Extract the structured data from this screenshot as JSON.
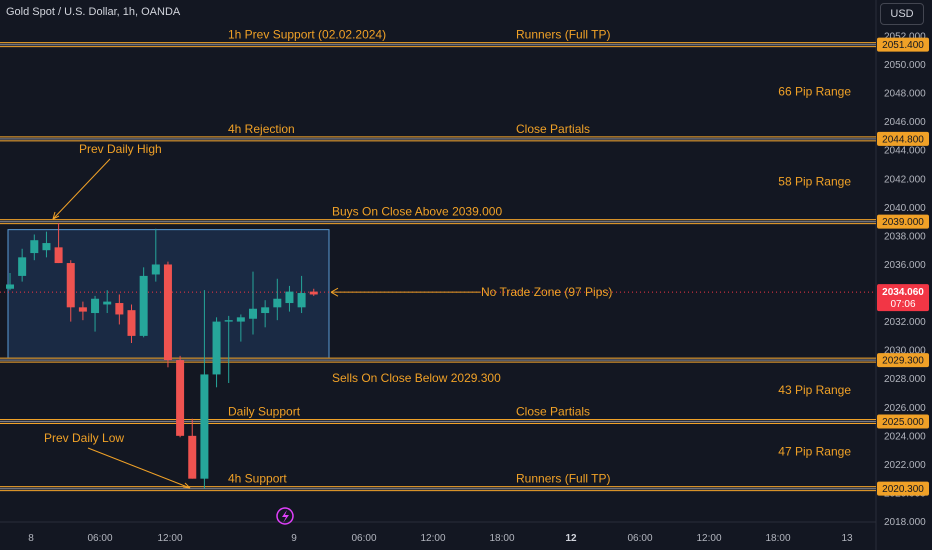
{
  "header": {
    "title": "Gold Spot / U.S. Dollar, 1h, OANDA",
    "currency": "USD"
  },
  "colors": {
    "background": "#131722",
    "bull": "#26a69a",
    "bear": "#ef5350",
    "level": "#f0a127",
    "zone_fill": "#1e3150",
    "zone_border": "#5b9bd5",
    "price_tag": "#f23645"
  },
  "chart_data": {
    "type": "candlestick",
    "symbol": "Gold Spot / U.S. Dollar",
    "timeframe": "1h",
    "ylim": [
      2017.0,
      2053.5
    ],
    "y_ticks": [
      "2052.000",
      "2050.000",
      "2048.000",
      "2046.000",
      "2044.000",
      "2042.000",
      "2040.000",
      "2038.000",
      "2036.000",
      "2034.000",
      "2032.000",
      "2030.000",
      "2028.000",
      "2026.000",
      "2024.000",
      "2022.000",
      "2020.000",
      "2018.000"
    ],
    "x_ticks": [
      {
        "label": "8",
        "bold": false
      },
      {
        "label": "06:00",
        "bold": false
      },
      {
        "label": "12:00",
        "bold": false
      },
      {
        "label": "9",
        "bold": false
      },
      {
        "label": "06:00",
        "bold": false
      },
      {
        "label": "12:00",
        "bold": false
      },
      {
        "label": "18:00",
        "bold": false
      },
      {
        "label": "12",
        "bold": true
      },
      {
        "label": "06:00",
        "bold": false
      },
      {
        "label": "12:00",
        "bold": false
      },
      {
        "label": "18:00",
        "bold": false
      },
      {
        "label": "13",
        "bold": false
      }
    ],
    "candles": [
      {
        "o": 2034.3,
        "h": 2035.4,
        "l": 2034.2,
        "c": 2034.6
      },
      {
        "o": 2035.2,
        "h": 2037.1,
        "l": 2034.8,
        "c": 2036.5
      },
      {
        "o": 2036.8,
        "h": 2038.1,
        "l": 2036.3,
        "c": 2037.7
      },
      {
        "o": 2037.0,
        "h": 2038.3,
        "l": 2036.5,
        "c": 2037.5
      },
      {
        "o": 2037.2,
        "h": 2038.9,
        "l": 2036.1,
        "c": 2036.1
      },
      {
        "o": 2036.1,
        "h": 2036.3,
        "l": 2032.0,
        "c": 2033.0
      },
      {
        "o": 2033.0,
        "h": 2033.4,
        "l": 2032.1,
        "c": 2032.7
      },
      {
        "o": 2032.6,
        "h": 2033.8,
        "l": 2031.3,
        "c": 2033.6
      },
      {
        "o": 2033.2,
        "h": 2034.2,
        "l": 2032.6,
        "c": 2033.4
      },
      {
        "o": 2033.3,
        "h": 2033.9,
        "l": 2031.8,
        "c": 2032.5
      },
      {
        "o": 2032.8,
        "h": 2033.2,
        "l": 2030.5,
        "c": 2031.0
      },
      {
        "o": 2031.0,
        "h": 2035.8,
        "l": 2030.9,
        "c": 2035.2
      },
      {
        "o": 2035.3,
        "h": 2038.5,
        "l": 2034.8,
        "c": 2036.0
      },
      {
        "o": 2036.0,
        "h": 2036.2,
        "l": 2028.8,
        "c": 2029.3
      },
      {
        "o": 2029.3,
        "h": 2029.6,
        "l": 2023.9,
        "c": 2024.0
      },
      {
        "o": 2024.0,
        "h": 2025.2,
        "l": 2021.0,
        "c": 2021.0
      },
      {
        "o": 2021.0,
        "h": 2034.2,
        "l": 2020.3,
        "c": 2028.3
      },
      {
        "o": 2028.3,
        "h": 2032.3,
        "l": 2027.4,
        "c": 2032.0
      },
      {
        "o": 2032.0,
        "h": 2032.4,
        "l": 2027.7,
        "c": 2032.1
      },
      {
        "o": 2032.0,
        "h": 2032.5,
        "l": 2030.6,
        "c": 2032.3
      },
      {
        "o": 2032.2,
        "h": 2035.5,
        "l": 2031.1,
        "c": 2032.9
      },
      {
        "o": 2032.6,
        "h": 2033.5,
        "l": 2031.6,
        "c": 2033.0
      },
      {
        "o": 2033.0,
        "h": 2035.0,
        "l": 2032.1,
        "c": 2033.6
      },
      {
        "o": 2033.3,
        "h": 2034.5,
        "l": 2032.7,
        "c": 2034.1
      },
      {
        "o": 2033.0,
        "h": 2035.2,
        "l": 2032.6,
        "c": 2034.0
      },
      {
        "o": 2034.1,
        "h": 2034.3,
        "l": 2033.8,
        "c": 2033.9
      }
    ],
    "levels": [
      {
        "price": 2051.4,
        "label": "2051.400",
        "left_text": "1h Prev Support (02.02.2024)",
        "right_text": "Runners (Full TP)"
      },
      {
        "price": 2044.8,
        "label": "2044.800",
        "left_text": "4h Rejection",
        "right_text": "Close Partials"
      },
      {
        "price": 2039.0,
        "label": "2039.000",
        "left_text": "Buys On Close Above 2039.000",
        "right_text": ""
      },
      {
        "price": 2029.3,
        "label": "2029.300",
        "left_text": "Sells On Close Below 2029.300",
        "right_text": ""
      },
      {
        "price": 2025.0,
        "label": "2025.000",
        "left_text": "Daily Support",
        "right_text": "Close Partials"
      },
      {
        "price": 2020.3,
        "label": "2020.300",
        "left_text": "4h Support",
        "right_text": "Runners (Full TP)"
      }
    ],
    "ranges": [
      {
        "label": "66 Pip Range",
        "price": 2048.1
      },
      {
        "label": "58 Pip Range",
        "price": 2041.8
      },
      {
        "label": "43 Pip Range",
        "price": 2027.2
      },
      {
        "label": "47 Pip Range",
        "price": 2022.9
      }
    ],
    "no_trade_zone": {
      "label": "No Trade Zone (97 Pips)",
      "top": 2039.0,
      "bottom": 2029.3
    },
    "prev_daily_high": {
      "label": "Prev Daily High",
      "price": 2038.9
    },
    "prev_daily_low": {
      "label": "Prev Daily Low",
      "price": 2020.3
    },
    "current_price": {
      "value": "2034.060",
      "countdown": "07:06",
      "price": 2034.06
    }
  }
}
